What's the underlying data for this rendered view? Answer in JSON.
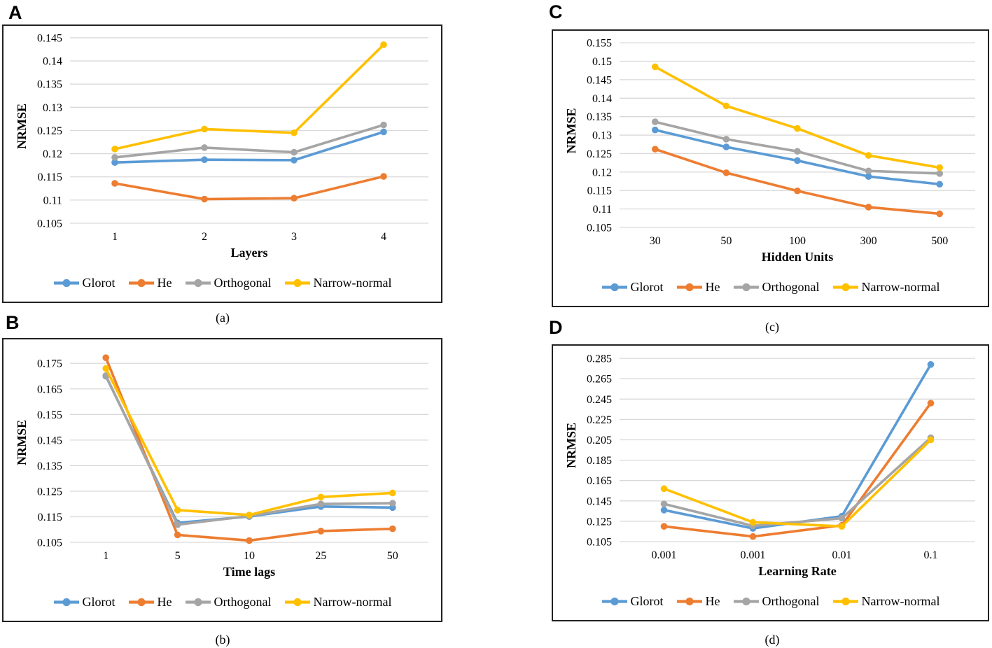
{
  "figure": {
    "background": "#FFFFFF",
    "panel_border_color": "#222222",
    "grid_color": "#D9D9D9",
    "text_color": "#000000"
  },
  "chart_data": [
    {
      "type": "line",
      "panel_letter": "A",
      "caption": "(a)",
      "xlabel": "Layers",
      "ylabel": "NRMSE",
      "grid": true,
      "legend_position": "bottom",
      "categories": [
        "1",
        "2",
        "3",
        "4"
      ],
      "yticks": [
        "0.145",
        "0.14",
        "0.135",
        "0.13",
        "0.125",
        "0.12",
        "0.115",
        "0.11",
        "0.105"
      ],
      "ylim": [
        0.105,
        0.1468
      ],
      "series": [
        {
          "name": "Glorot",
          "color": "#5B9BD5",
          "values": [
            0.1181,
            0.1187,
            0.1186,
            0.1247
          ]
        },
        {
          "name": "He",
          "color": "#ED7D31",
          "values": [
            0.1136,
            0.1102,
            0.1104,
            0.1151
          ]
        },
        {
          "name": "Orthogonal",
          "color": "#A5A5A5",
          "values": [
            0.1192,
            0.1213,
            0.1203,
            0.1262
          ]
        },
        {
          "name": "Narrow-normal",
          "color": "#FFC000",
          "values": [
            0.121,
            0.1253,
            0.1245,
            0.1435
          ]
        }
      ]
    },
    {
      "type": "line",
      "panel_letter": "B",
      "caption": "(b)",
      "xlabel": "Time lags",
      "ylabel": "NRMSE",
      "grid": true,
      "legend_position": "bottom",
      "categories": [
        "1",
        "5",
        "10",
        "25",
        "50"
      ],
      "yticks": [
        "0.175",
        "0.165",
        "0.155",
        "0.145",
        "0.135",
        "0.125",
        "0.115",
        "0.105"
      ],
      "ylim": [
        0.105,
        0.183
      ],
      "series": [
        {
          "name": "Glorot",
          "color": "#5B9BD5",
          "values": [
            0.17,
            0.1126,
            0.1151,
            0.119,
            0.1186
          ]
        },
        {
          "name": "He",
          "color": "#ED7D31",
          "values": [
            0.1772,
            0.1079,
            0.1057,
            0.1094,
            0.1103
          ]
        },
        {
          "name": "Orthogonal",
          "color": "#A5A5A5",
          "values": [
            0.1702,
            0.1119,
            0.1153,
            0.12,
            0.1203
          ]
        },
        {
          "name": "Narrow-normal",
          "color": "#FFC000",
          "values": [
            0.173,
            0.1176,
            0.1157,
            0.1227,
            0.1243
          ]
        }
      ]
    },
    {
      "type": "line",
      "panel_letter": "C",
      "caption": "(c)",
      "xlabel": "Hidden Units",
      "ylabel": "NRMSE",
      "grid": true,
      "legend_position": "bottom",
      "categories": [
        "30",
        "50",
        "100",
        "300",
        "500"
      ],
      "yticks": [
        "0.155",
        "0.15",
        "0.145",
        "0.14",
        "0.135",
        "0.13",
        "0.125",
        "0.12",
        "0.115",
        "0.11",
        "0.105"
      ],
      "ylim": [
        0.105,
        0.1573
      ],
      "series": [
        {
          "name": "Glorot",
          "color": "#5B9BD5",
          "values": [
            0.1314,
            0.1268,
            0.1231,
            0.1188,
            0.1167
          ]
        },
        {
          "name": "He",
          "color": "#ED7D31",
          "values": [
            0.1262,
            0.1198,
            0.1149,
            0.1105,
            0.1087
          ]
        },
        {
          "name": "Orthogonal",
          "color": "#A5A5A5",
          "values": [
            0.1336,
            0.1289,
            0.1256,
            0.1203,
            0.1196
          ]
        },
        {
          "name": "Narrow-normal",
          "color": "#FFC000",
          "values": [
            0.1485,
            0.1379,
            0.1318,
            0.1245,
            0.1212
          ]
        }
      ]
    },
    {
      "type": "line",
      "panel_letter": "D",
      "caption": "(d)",
      "xlabel": "Learning Rate",
      "ylabel": "NRMSE",
      "grid": true,
      "legend_position": "bottom",
      "categories": [
        "0.001",
        "0.001",
        "0.01",
        "0.1"
      ],
      "yticks": [
        "0.285",
        "0.265",
        "0.245",
        "0.225",
        "0.205",
        "0.185",
        "0.165",
        "0.145",
        "0.125",
        "0.105"
      ],
      "ylim": [
        0.105,
        0.294
      ],
      "series": [
        {
          "name": "Glorot",
          "color": "#5B9BD5",
          "values": [
            0.136,
            0.118,
            0.13,
            0.279
          ]
        },
        {
          "name": "He",
          "color": "#ED7D31",
          "values": [
            0.12,
            0.11,
            0.121,
            0.241
          ]
        },
        {
          "name": "Orthogonal",
          "color": "#A5A5A5",
          "values": [
            0.142,
            0.1205,
            0.128,
            0.207
          ]
        },
        {
          "name": "Narrow-normal",
          "color": "#FFC000",
          "values": [
            0.157,
            0.124,
            0.12,
            0.205
          ]
        }
      ]
    }
  ]
}
